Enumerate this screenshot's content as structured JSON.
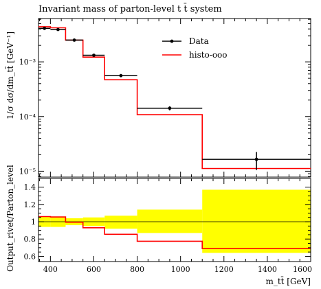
{
  "chart_data": {
    "type": "line",
    "title": "Invariant mass of parton-level t t̄ system",
    "xlabel": "m_tt̄ [GeV]",
    "ylabel": "1/σ dσ/dm_tt̄ [GeV⁻¹]",
    "ratio_ylabel": "Output_rivet/Parton_level",
    "xlim": [
      345,
      1600
    ],
    "ylim": [
      7.8e-06,
      0.0062
    ],
    "y_scale": "log",
    "ratio_ylim": [
      0.54,
      1.5
    ],
    "legend_position": "top-right",
    "x_ticks": [
      400,
      600,
      800,
      1000,
      1200,
      1400,
      1600
    ],
    "y_ticks": [
      {
        "value": 1e-05,
        "label": "10⁻⁵"
      },
      {
        "value": 0.0001,
        "label": "10⁻⁴"
      },
      {
        "value": 0.001,
        "label": "10⁻³"
      }
    ],
    "ratio_ticks": [
      {
        "value": 0.6,
        "label": "0.6"
      },
      {
        "value": 0.8,
        "label": "0.8"
      },
      {
        "value": 1.0,
        "label": "1"
      },
      {
        "value": 1.2,
        "label": "1.2"
      },
      {
        "value": 1.4,
        "label": "1.4"
      }
    ],
    "bin_edges": [
      345,
      400,
      470,
      550,
      650,
      800,
      1100,
      1600
    ],
    "series": [
      {
        "name": "Data",
        "color": "#000000",
        "x": [
          372.5,
          435,
          510,
          600,
          725,
          950,
          1350
        ],
        "values": [
          0.0041,
          0.0039,
          0.0025,
          0.00132,
          0.00056,
          0.000142,
          1.65e-05
        ],
        "y_err": [
          0.00015,
          0.00015,
          0.0001,
          5e-05,
          2e-05,
          1.2e-05,
          6e-06
        ]
      },
      {
        "name": "histo-ooo",
        "color": "#ff0000",
        "values": [
          0.0044,
          0.0042,
          0.0025,
          0.00122,
          0.00047,
          0.000108,
          1.12e-05
        ]
      }
    ],
    "ratio": {
      "values": [
        1.06,
        1.055,
        0.995,
        0.93,
        0.855,
        0.775,
        0.69
      ],
      "band_low": [
        0.94,
        0.94,
        0.96,
        0.95,
        0.92,
        0.87,
        0.64
      ],
      "band_high": [
        1.06,
        1.06,
        1.04,
        1.05,
        1.07,
        1.14,
        1.37
      ],
      "band_color": "#ffff00"
    }
  }
}
